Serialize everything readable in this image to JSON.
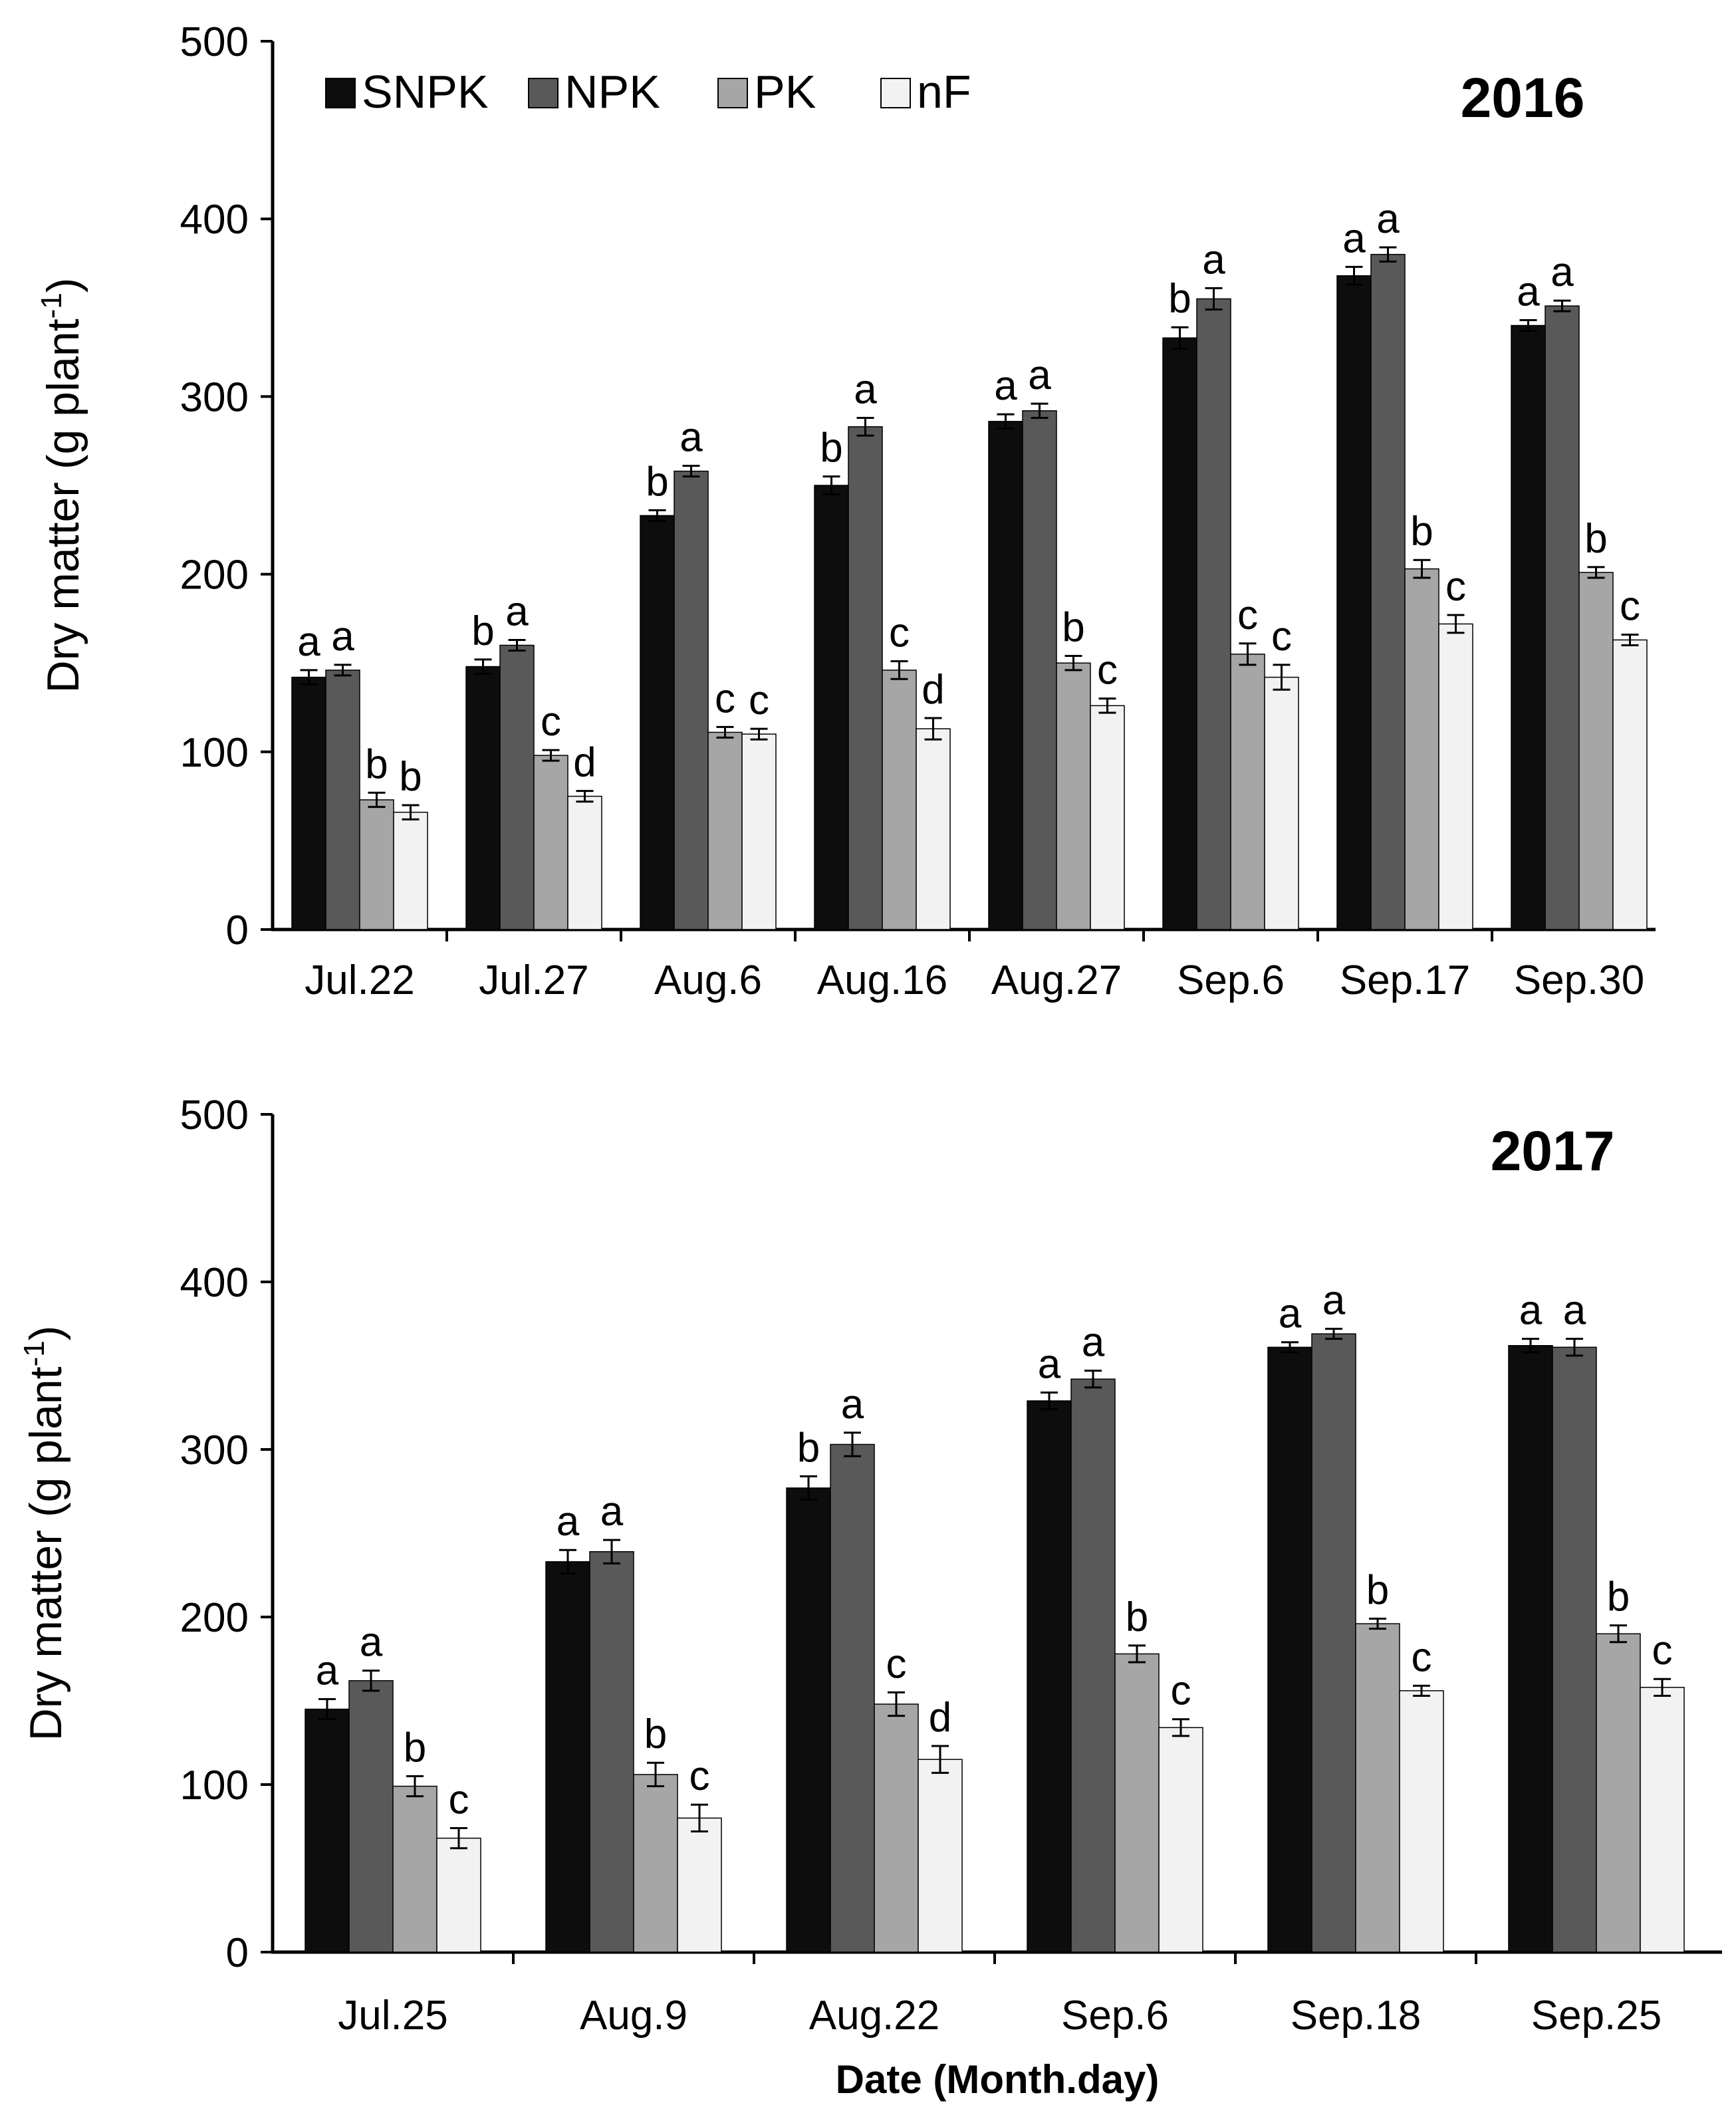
{
  "chart_data": [
    {
      "type": "bar",
      "panel": "2016",
      "title": "2016",
      "ylabel": "Dry matter (g plant",
      "ylabel_sup": "-1",
      "ylabel_close": ")",
      "ylim": [
        0,
        500
      ],
      "yticks": [
        0,
        100,
        200,
        300,
        400,
        500
      ],
      "categories": [
        "Jul.22",
        "Jul.27",
        "Aug.6",
        "Aug.16",
        "Aug.27",
        "Sep.6",
        "Sep.17",
        "Sep.30"
      ],
      "series": [
        {
          "name": "SNPK",
          "color": "#0d0d0d",
          "values": [
            142,
            148,
            233,
            250,
            286,
            333,
            368,
            340
          ],
          "errors": [
            4,
            4,
            3,
            5,
            4,
            6,
            5,
            3
          ],
          "letters": [
            "a",
            "b",
            "b",
            "b",
            "a",
            "b",
            "a",
            "a"
          ]
        },
        {
          "name": "NPK",
          "color": "#595959",
          "values": [
            146,
            160,
            258,
            283,
            292,
            355,
            380,
            351
          ],
          "errors": [
            3,
            3,
            3,
            5,
            4,
            6,
            4,
            3
          ],
          "letters": [
            "a",
            "a",
            "a",
            "a",
            "a",
            "a",
            "a",
            "a"
          ]
        },
        {
          "name": "PK",
          "color": "#a6a6a6",
          "values": [
            73,
            98,
            111,
            146,
            150,
            155,
            203,
            201
          ],
          "errors": [
            4,
            3,
            3,
            5,
            4,
            6,
            5,
            3
          ],
          "letters": [
            "b",
            "c",
            "c",
            "c",
            "b",
            "c",
            "b",
            "b"
          ]
        },
        {
          "name": "nF",
          "color": "#f2f2f2",
          "values": [
            66,
            75,
            110,
            113,
            126,
            142,
            172,
            163
          ],
          "errors": [
            4,
            3,
            3,
            6,
            4,
            7,
            5,
            3
          ],
          "letters": [
            "b",
            "d",
            "c",
            "d",
            "c",
            "c",
            "c",
            "c"
          ]
        }
      ]
    },
    {
      "type": "bar",
      "panel": "2017",
      "title": "2017",
      "ylabel": "Dry matter (g plant",
      "ylabel_sup": "-1",
      "ylabel_close": ")",
      "xlabel": "Date (Month.day)",
      "ylim": [
        0,
        500
      ],
      "yticks": [
        0,
        100,
        200,
        300,
        400,
        500
      ],
      "categories": [
        "Jul.25",
        "Aug.9",
        "Aug.22",
        "Sep.6",
        "Sep.18",
        "Sep.25"
      ],
      "series": [
        {
          "name": "SNPK",
          "color": "#0d0d0d",
          "values": [
            145,
            233,
            277,
            329,
            361,
            362
          ],
          "errors": [
            6,
            7,
            7,
            5,
            3,
            4
          ],
          "letters": [
            "a",
            "a",
            "b",
            "a",
            "a",
            "a"
          ]
        },
        {
          "name": "NPK",
          "color": "#595959",
          "values": [
            162,
            239,
            303,
            342,
            369,
            361
          ],
          "errors": [
            6,
            7,
            7,
            5,
            3,
            5
          ],
          "letters": [
            "a",
            "a",
            "a",
            "a",
            "a",
            "a"
          ]
        },
        {
          "name": "PK",
          "color": "#a6a6a6",
          "values": [
            99,
            106,
            148,
            178,
            196,
            190
          ],
          "errors": [
            6,
            7,
            7,
            5,
            3,
            5
          ],
          "letters": [
            "b",
            "b",
            "c",
            "b",
            "b",
            "b"
          ]
        },
        {
          "name": "nF",
          "color": "#f2f2f2",
          "values": [
            68,
            80,
            115,
            134,
            156,
            158
          ],
          "errors": [
            6,
            8,
            8,
            5,
            3,
            5
          ],
          "letters": [
            "c",
            "c",
            "d",
            "c",
            "c",
            "c"
          ]
        }
      ]
    }
  ]
}
